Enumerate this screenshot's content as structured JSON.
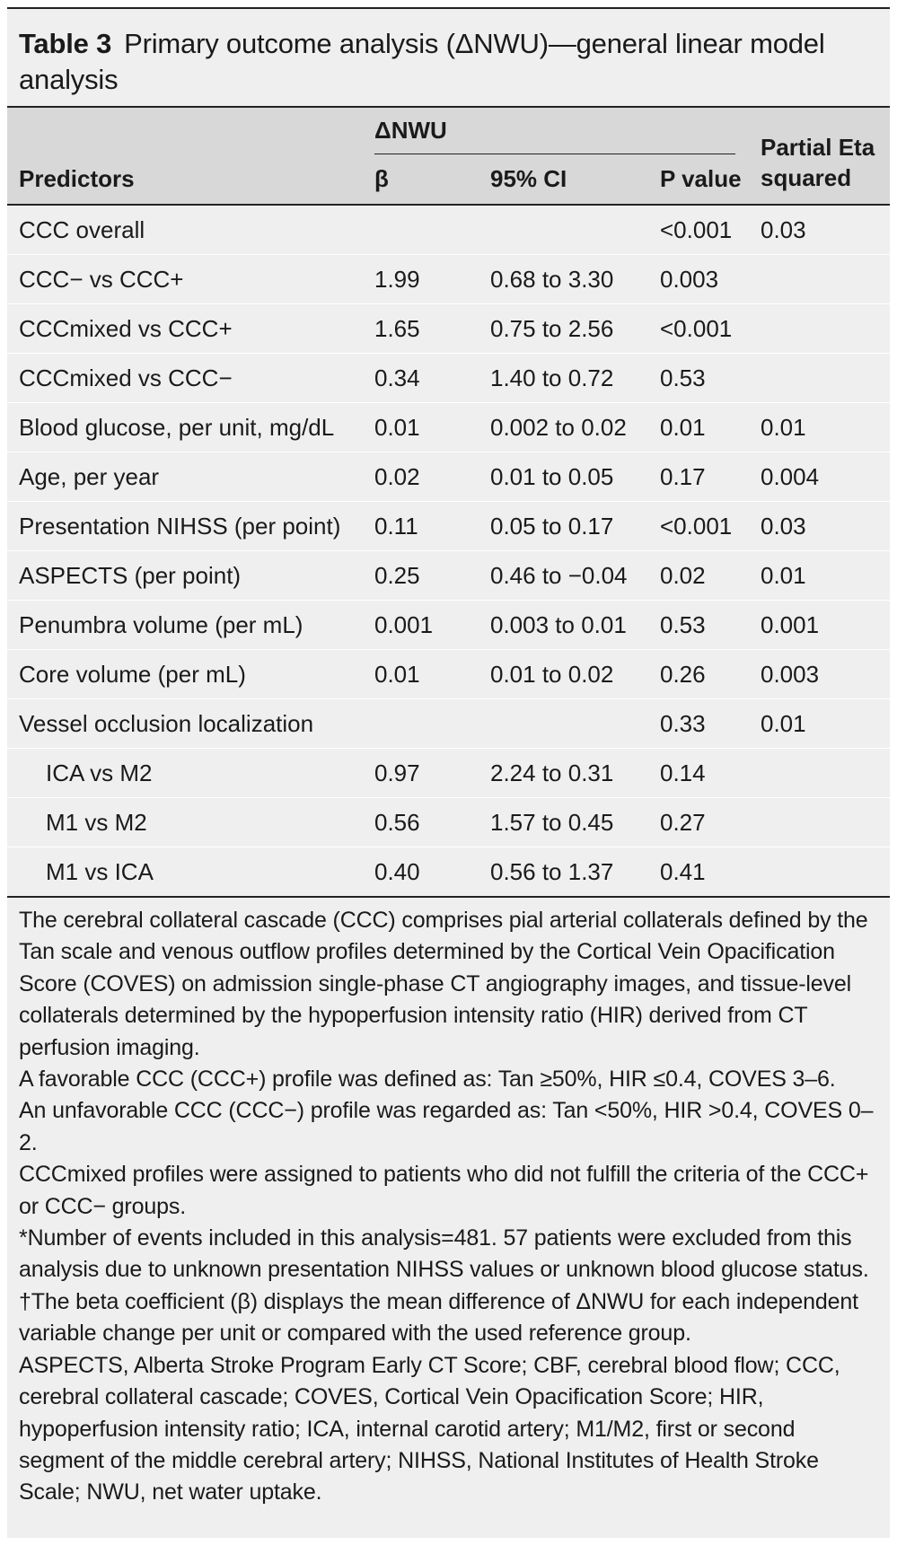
{
  "title": {
    "label": "Table 3",
    "text": "Primary outcome analysis (ΔNWU)—general linear model analysis"
  },
  "header": {
    "group_label": "ΔNWU",
    "predictors": "Predictors",
    "beta": "β",
    "ci": "95% CI",
    "p_value": "P value",
    "eta": "Partial Eta squared"
  },
  "rows": [
    {
      "predictor": "CCC overall",
      "beta": "",
      "ci": "",
      "p": "<0.001",
      "eta": "0.03",
      "indent": false
    },
    {
      "predictor": "CCC− vs CCC+",
      "beta": "1.99",
      "ci": "0.68 to 3.30",
      "p": "0.003",
      "eta": "",
      "indent": false
    },
    {
      "predictor": "CCCmixed vs CCC+",
      "beta": "1.65",
      "ci": "0.75 to 2.56",
      "p": "<0.001",
      "eta": "",
      "indent": false
    },
    {
      "predictor": "CCCmixed vs CCC−",
      "beta": "0.34",
      "ci": "1.40 to 0.72",
      "p": "0.53",
      "eta": "",
      "indent": false
    },
    {
      "predictor": "Blood glucose, per unit, mg/dL",
      "beta": "0.01",
      "ci": "0.002 to 0.02",
      "p": "0.01",
      "eta": "0.01",
      "indent": false
    },
    {
      "predictor": "Age, per year",
      "beta": "0.02",
      "ci": "0.01 to 0.05",
      "p": "0.17",
      "eta": "0.004",
      "indent": false
    },
    {
      "predictor": "Presentation NIHSS (per point)",
      "beta": "0.11",
      "ci": "0.05 to 0.17",
      "p": "<0.001",
      "eta": "0.03",
      "indent": false
    },
    {
      "predictor": "ASPECTS (per point)",
      "beta": "0.25",
      "ci": "0.46 to −0.04",
      "p": "0.02",
      "eta": "0.01",
      "indent": false
    },
    {
      "predictor": "Penumbra volume (per mL)",
      "beta": "0.001",
      "ci": "0.003 to 0.01",
      "p": "0.53",
      "eta": "0.001",
      "indent": false
    },
    {
      "predictor": "Core volume (per mL)",
      "beta": "0.01",
      "ci": "0.01 to 0.02",
      "p": "0.26",
      "eta": "0.003",
      "indent": false
    },
    {
      "predictor": "Vessel occlusion localization",
      "beta": "",
      "ci": "",
      "p": "0.33",
      "eta": "0.01",
      "indent": false
    },
    {
      "predictor": "ICA vs M2",
      "beta": "0.97",
      "ci": "2.24 to 0.31",
      "p": "0.14",
      "eta": "",
      "indent": true
    },
    {
      "predictor": "M1 vs M2",
      "beta": "0.56",
      "ci": "1.57 to 0.45",
      "p": "0.27",
      "eta": "",
      "indent": true
    },
    {
      "predictor": "M1 vs ICA",
      "beta": "0.40",
      "ci": "0.56 to 1.37",
      "p": "0.41",
      "eta": "",
      "indent": true
    }
  ],
  "notes": [
    "The cerebral collateral cascade (CCC) comprises pial arterial collaterals defined by the Tan scale and venous outflow profiles determined by the Cortical Vein Opacification Score (COVES) on admission single-phase CT angiography images, and tissue-level collaterals determined by the hypoperfusion intensity ratio (HIR) derived from CT perfusion imaging.",
    "A favorable CCC (CCC+) profile was defined as: Tan ≥50%, HIR ≤0.4, COVES 3–6.",
    "An unfavorable CCC (CCC−) profile was regarded as: Tan <50%, HIR >0.4, COVES 0–2.",
    "CCCmixed profiles were assigned to patients who did not fulfill the criteria of the CCC+ or CCC− groups.",
    "*Number of events included in this analysis=481. 57 patients were excluded from this analysis due to unknown presentation NIHSS values or unknown blood glucose status.",
    "†The beta coefficient (β) displays the mean difference of ΔNWU for each independent variable change per unit or compared with the used reference group.",
    "ASPECTS, Alberta Stroke Program Early CT Score; CBF, cerebral blood flow; CCC, cerebral collateral cascade; COVES, Cortical Vein Opacification Score; HIR, hypoperfusion intensity ratio; ICA, internal carotid artery; M1/M2, first or second segment of the middle cerebral artery; NIHSS, National Institutes of Health Stroke Scale; NWU, net water uptake."
  ]
}
